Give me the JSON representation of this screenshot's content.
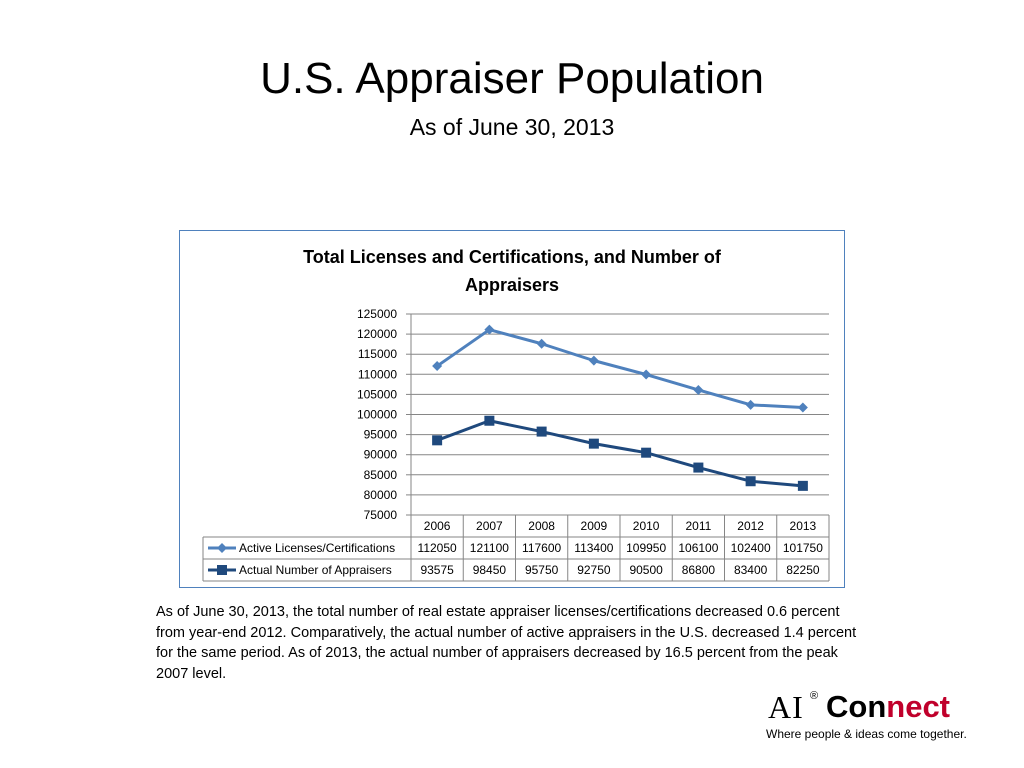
{
  "slide": {
    "title": "U.S. Appraiser Population",
    "subtitle": "As of June 30, 2013",
    "description": "As of June 30, 2013, the total number of real estate appraiser licenses/certifications decreased 0.6 percent from year-end 2012. Comparatively, the actual number of active appraisers in the U.S. decreased 1.4 percent for the same period. As of 2013, the actual number of appraisers decreased by 16.5 percent from the peak 2007 level."
  },
  "logo": {
    "ai": "AI",
    "registered": "®",
    "con": "Con",
    "nect": "nect",
    "tagline": "Where people & ideas come together."
  },
  "chart_data": {
    "type": "line",
    "title_lines": [
      "Total Licenses and Certifications, and Number of",
      "Appraisers"
    ],
    "categories": [
      "2006",
      "2007",
      "2008",
      "2009",
      "2010",
      "2011",
      "2012",
      "2013"
    ],
    "series": [
      {
        "name": "Active Licenses/Certifications",
        "values": [
          112050,
          121100,
          117600,
          113400,
          109950,
          106100,
          102400,
          101750
        ],
        "color": "#4f81bd",
        "marker": "diamond"
      },
      {
        "name": "Actual Number of Appraisers",
        "values": [
          93575,
          98450,
          95750,
          92750,
          90500,
          86800,
          83400,
          82250
        ],
        "color": "#1f497d",
        "marker": "square"
      }
    ],
    "ylim": [
      75000,
      125000
    ],
    "ytick_step": 5000,
    "grid": true,
    "legend": "data-table-below",
    "data_table": true,
    "xlabel": "",
    "ylabel": ""
  }
}
